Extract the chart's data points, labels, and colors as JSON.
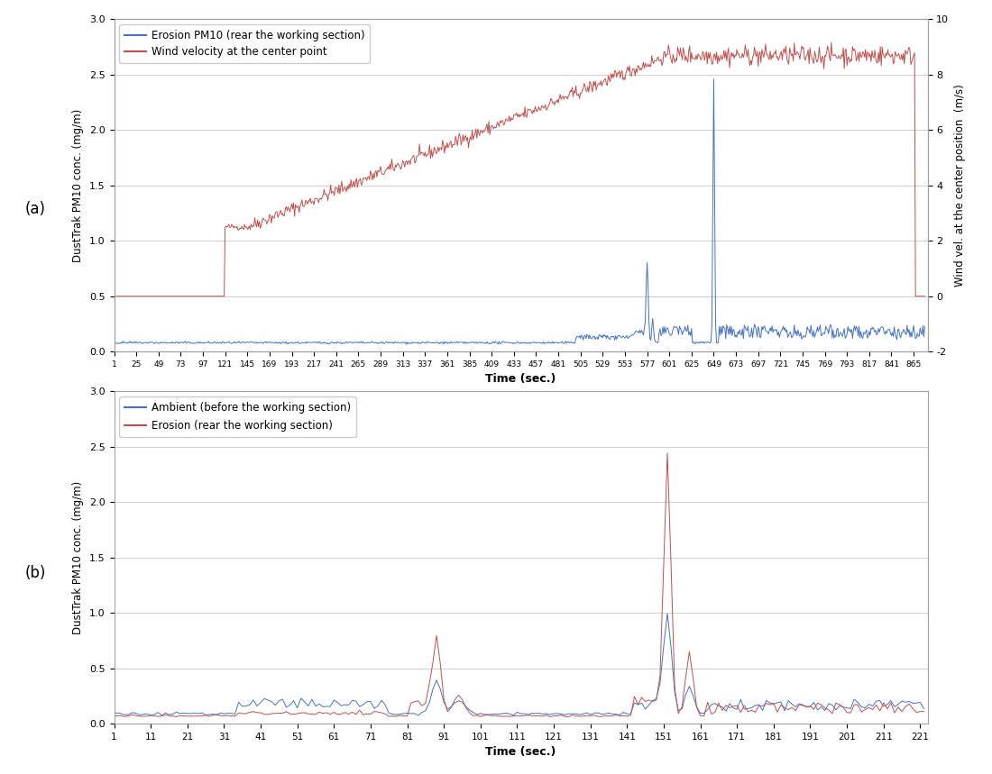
{
  "panel_a": {
    "xlabel": "Time (sec.)",
    "ylabel_left": "DustTrak PM10 conc. (mg/m)",
    "ylabel_right": "Wind vel. at the center position  (m/s)",
    "legend_blue": "Erosion PM10 (rear the working section)",
    "legend_red": "Wind velocity at the center point",
    "ylim_left": [
      0.0,
      3.0
    ],
    "ylim_right": [
      -2,
      10
    ],
    "yticks_left": [
      0.0,
      0.5,
      1.0,
      1.5,
      2.0,
      2.5,
      3.0
    ],
    "yticks_right": [
      -2,
      0,
      2,
      4,
      6,
      8,
      10
    ],
    "xtick_start": 1,
    "xtick_end": 865,
    "xtick_step": 24,
    "blue_color": "#4472C4",
    "red_color": "#C0504D",
    "xlim_max": 880
  },
  "panel_b": {
    "xlabel": "Time (sec.)",
    "ylabel_left": "DustTrak PM10 conc. (mg/m)",
    "legend_blue": "Ambient (before the working section)",
    "legend_red": "Erosion (rear the working section)",
    "ylim_left": [
      0.0,
      3.0
    ],
    "yticks_left": [
      0.0,
      0.5,
      1.0,
      1.5,
      2.0,
      2.5,
      3.0
    ],
    "xtick_start": 1,
    "xtick_end": 221,
    "xtick_step": 10,
    "blue_color": "#4472C4",
    "red_color": "#C0504D",
    "xlim_max": 223
  },
  "label_a": "(a)",
  "label_b": "(b)",
  "bg_color": "#FFFFFF",
  "panel_bg": "#FFFFFF",
  "grid_color": "#C8C8C8",
  "border_color": "#A0A0A0"
}
